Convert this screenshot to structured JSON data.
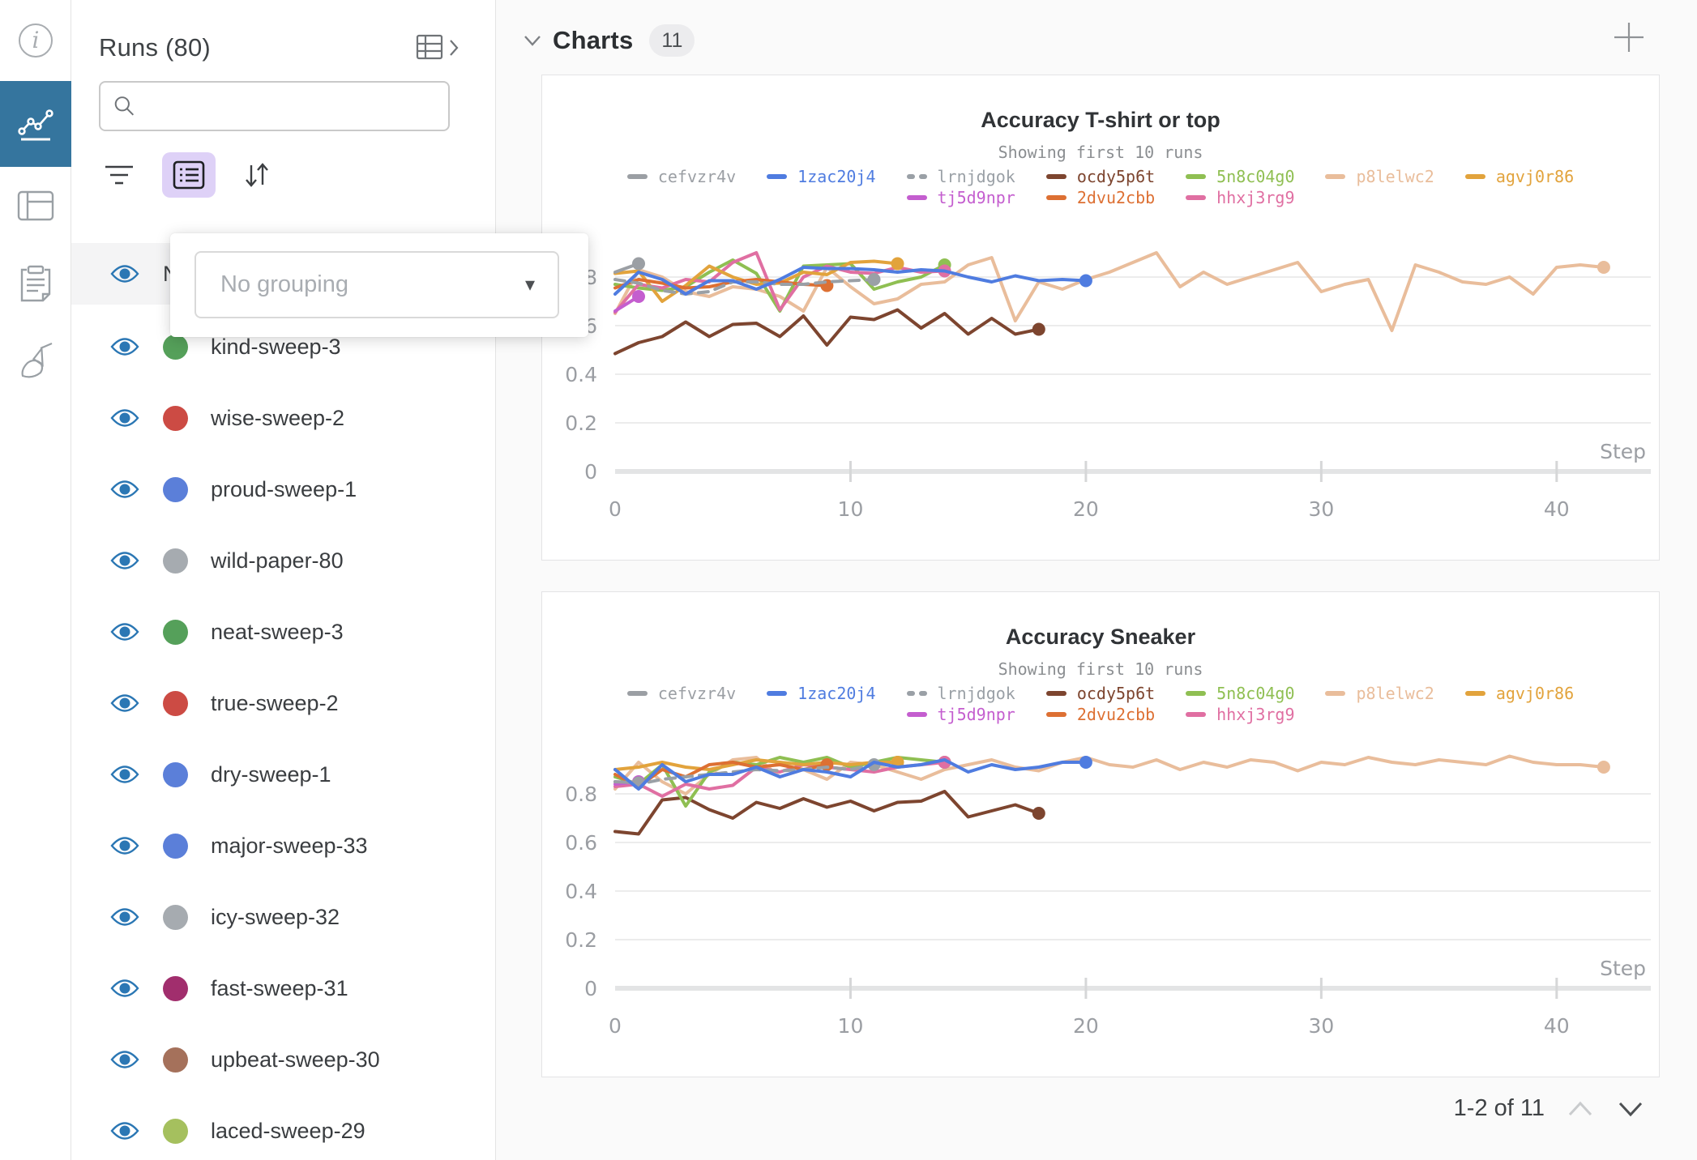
{
  "app": {
    "accent_blue": "#35759e",
    "purple_highlight": "#ded1f7",
    "eye_blue": "#2b77b4"
  },
  "left_rail": {
    "items": [
      {
        "name": "info",
        "active": false
      },
      {
        "name": "panels-line-chart",
        "active": true
      },
      {
        "name": "runs-table",
        "active": false
      },
      {
        "name": "notes-clipboard",
        "active": false
      },
      {
        "name": "sweeps-broom",
        "active": false
      }
    ]
  },
  "runs_panel": {
    "title": "Runs (80)",
    "search_placeholder": "",
    "search_value": "",
    "column_header": "Name",
    "grouping_popup": {
      "value": "No grouping",
      "caret": "▾"
    },
    "runs": [
      {
        "name": "kind-sweep-3",
        "color": "#55a05a"
      },
      {
        "name": "wise-sweep-2",
        "color": "#cc4b44"
      },
      {
        "name": "proud-sweep-1",
        "color": "#5b7fd9"
      },
      {
        "name": "wild-paper-80",
        "color": "#a6abb0"
      },
      {
        "name": "neat-sweep-3",
        "color": "#55a05a"
      },
      {
        "name": "true-sweep-2",
        "color": "#cc4b44"
      },
      {
        "name": "dry-sweep-1",
        "color": "#5b7fd9"
      },
      {
        "name": "major-sweep-33",
        "color": "#5b7fd9"
      },
      {
        "name": "icy-sweep-32",
        "color": "#a6abb0"
      },
      {
        "name": "fast-sweep-31",
        "color": "#a12e6d"
      },
      {
        "name": "upbeat-sweep-30",
        "color": "#a5715b"
      },
      {
        "name": "laced-sweep-29",
        "color": "#a5c05e"
      }
    ]
  },
  "charts_section": {
    "title": "Charts",
    "count": "11",
    "pagination": {
      "label": "1-2 of 11"
    }
  },
  "chart_data": [
    {
      "type": "line",
      "title": "Accuracy T-shirt or top",
      "subtitle": "Showing first 10 runs",
      "xlabel": "Step",
      "ylabel": "",
      "xlim": [
        0,
        44
      ],
      "ylim": [
        0,
        1
      ],
      "xticks": [
        0,
        10,
        20,
        30,
        40
      ],
      "yticks": [
        0,
        0.2,
        0.4,
        0.6,
        0.8
      ],
      "grid": true,
      "legend_position": "top",
      "legend_order": [
        "cefvzr4v",
        "1zac20j4",
        "lrnjdgok",
        "ocdy5p6t",
        "5n8c04g0",
        "p8lelwc2",
        "agvj0r86",
        "tj5d9npr",
        "2dvu2cbb",
        "hhxj3rg9"
      ],
      "series": [
        {
          "name": "p8lelwc2",
          "color": "#e9bd9b",
          "dash": false,
          "values": [
            0.65,
            0.83,
            0.8,
            0.74,
            0.72,
            0.76,
            0.75,
            0.72,
            0.66,
            0.84,
            0.76,
            0.69,
            0.71,
            0.77,
            0.78,
            0.85,
            0.88,
            0.62,
            0.78,
            0.75,
            0.79,
            0.82,
            0.86,
            0.9,
            0.76,
            0.82,
            0.77,
            0.8,
            0.83,
            0.86,
            0.74,
            0.77,
            0.79,
            0.58,
            0.85,
            0.82,
            0.78,
            0.77,
            0.8,
            0.73,
            0.84,
            0.85,
            0.84
          ]
        },
        {
          "name": "ocdy5p6t",
          "color": "#7d452f",
          "dash": false,
          "values": [
            0.485,
            0.53,
            0.555,
            0.615,
            0.555,
            0.605,
            0.61,
            0.555,
            0.64,
            0.52,
            0.635,
            0.625,
            0.665,
            0.59,
            0.65,
            0.565,
            0.63,
            0.565,
            0.585
          ]
        },
        {
          "name": "5n8c04g0",
          "color": "#8fbf52",
          "dash": false,
          "values": [
            0.77,
            0.755,
            0.745,
            0.76,
            0.82,
            0.87,
            0.815,
            0.66,
            0.845,
            0.85,
            0.855,
            0.75,
            0.78,
            0.8,
            0.85
          ]
        },
        {
          "name": "hhxj3rg9",
          "color": "#e06fa2",
          "dash": false,
          "values": [
            0.655,
            0.77,
            0.755,
            0.79,
            0.78,
            0.86,
            0.9,
            0.665,
            0.8,
            0.845,
            0.82,
            0.815,
            0.84,
            0.82,
            0.825
          ]
        },
        {
          "name": "agvj0r86",
          "color": "#e2a33c",
          "dash": false,
          "values": [
            0.815,
            0.825,
            0.7,
            0.765,
            0.845,
            0.8,
            0.77,
            0.775,
            0.82,
            0.81,
            0.86,
            0.865,
            0.855
          ]
        },
        {
          "name": "2dvu2cbb",
          "color": "#dd7033",
          "dash": false,
          "values": [
            0.755,
            0.79,
            0.775,
            0.755,
            0.76,
            0.78,
            0.79,
            0.78,
            0.77,
            0.765
          ]
        },
        {
          "name": "lrnjdgok",
          "color": "#9aa0a6",
          "dash": true,
          "values": [
            0.79,
            0.775,
            0.745,
            0.73,
            0.74,
            0.78,
            0.78,
            0.77,
            0.77,
            0.78,
            0.785,
            0.79
          ]
        },
        {
          "name": "tj5d9npr",
          "color": "#c45ecf",
          "dash": false,
          "values": [
            0.66,
            0.72
          ]
        },
        {
          "name": "cefvzr4v",
          "color": "#9b9fa4",
          "dash": false,
          "values": [
            0.82,
            0.855
          ]
        },
        {
          "name": "1zac20j4",
          "color": "#4f7ce0",
          "dash": false,
          "values": [
            0.73,
            0.82,
            0.79,
            0.73,
            0.785,
            0.785,
            0.75,
            0.79,
            0.84,
            0.835,
            0.835,
            0.83,
            0.82,
            0.83,
            0.825,
            0.8,
            0.78,
            0.805,
            0.785,
            0.79,
            0.785
          ]
        }
      ]
    },
    {
      "type": "line",
      "title": "Accuracy Sneaker",
      "subtitle": "Showing first 10 runs",
      "xlabel": "Step",
      "ylabel": "",
      "xlim": [
        0,
        44
      ],
      "ylim": [
        0,
        1
      ],
      "xticks": [
        0,
        10,
        20,
        30,
        40
      ],
      "yticks": [
        0,
        0.2,
        0.4,
        0.6,
        0.8
      ],
      "grid": true,
      "legend_position": "top",
      "legend_order": [
        "cefvzr4v",
        "1zac20j4",
        "lrnjdgok",
        "ocdy5p6t",
        "5n8c04g0",
        "p8lelwc2",
        "agvj0r86",
        "tj5d9npr",
        "2dvu2cbb",
        "hhxj3rg9"
      ],
      "series": [
        {
          "name": "p8lelwc2",
          "color": "#e9bd9b",
          "dash": false,
          "values": [
            0.82,
            0.93,
            0.85,
            0.8,
            0.88,
            0.94,
            0.95,
            0.87,
            0.9,
            0.86,
            0.93,
            0.92,
            0.89,
            0.86,
            0.9,
            0.92,
            0.94,
            0.91,
            0.895,
            0.93,
            0.95,
            0.92,
            0.91,
            0.94,
            0.9,
            0.93,
            0.91,
            0.94,
            0.93,
            0.895,
            0.93,
            0.92,
            0.95,
            0.93,
            0.92,
            0.94,
            0.93,
            0.92,
            0.955,
            0.93,
            0.92,
            0.92,
            0.91
          ]
        },
        {
          "name": "ocdy5p6t",
          "color": "#7d452f",
          "dash": false,
          "values": [
            0.645,
            0.635,
            0.775,
            0.785,
            0.735,
            0.7,
            0.765,
            0.74,
            0.78,
            0.745,
            0.77,
            0.73,
            0.765,
            0.77,
            0.81,
            0.705,
            0.73,
            0.755,
            0.72
          ]
        },
        {
          "name": "5n8c04g0",
          "color": "#8fbf52",
          "dash": false,
          "values": [
            0.87,
            0.84,
            0.92,
            0.75,
            0.89,
            0.93,
            0.92,
            0.95,
            0.93,
            0.95,
            0.91,
            0.93,
            0.95,
            0.94,
            0.93
          ]
        },
        {
          "name": "hhxj3rg9",
          "color": "#e06fa2",
          "dash": false,
          "values": [
            0.83,
            0.84,
            0.79,
            0.84,
            0.82,
            0.835,
            0.91,
            0.89,
            0.92,
            0.91,
            0.9,
            0.89,
            0.91,
            0.92,
            0.93
          ]
        },
        {
          "name": "agvj0r86",
          "color": "#e2a33c",
          "dash": false,
          "values": [
            0.9,
            0.91,
            0.93,
            0.91,
            0.9,
            0.92,
            0.94,
            0.93,
            0.92,
            0.93,
            0.92,
            0.93,
            0.93
          ]
        },
        {
          "name": "2dvu2cbb",
          "color": "#dd7033",
          "dash": false,
          "values": [
            0.88,
            0.83,
            0.9,
            0.87,
            0.92,
            0.93,
            0.91,
            0.92,
            0.9,
            0.92
          ]
        },
        {
          "name": "lrnjdgok",
          "color": "#9aa0a6",
          "dash": true,
          "values": [
            0.85,
            0.84,
            0.86,
            0.87,
            0.88,
            0.89,
            0.9,
            0.895,
            0.9,
            0.91,
            0.9,
            0.92
          ]
        },
        {
          "name": "tj5d9npr",
          "color": "#c45ecf",
          "dash": false,
          "values": [
            0.84,
            0.85
          ]
        },
        {
          "name": "cefvzr4v",
          "color": "#9b9fa4",
          "dash": false,
          "values": [
            0.85,
            0.845
          ]
        },
        {
          "name": "1zac20j4",
          "color": "#4f7ce0",
          "dash": false,
          "values": [
            0.9,
            0.82,
            0.92,
            0.85,
            0.88,
            0.88,
            0.91,
            0.87,
            0.9,
            0.89,
            0.87,
            0.93,
            0.91,
            0.92,
            0.94,
            0.89,
            0.92,
            0.9,
            0.91,
            0.93,
            0.93
          ]
        }
      ]
    }
  ]
}
